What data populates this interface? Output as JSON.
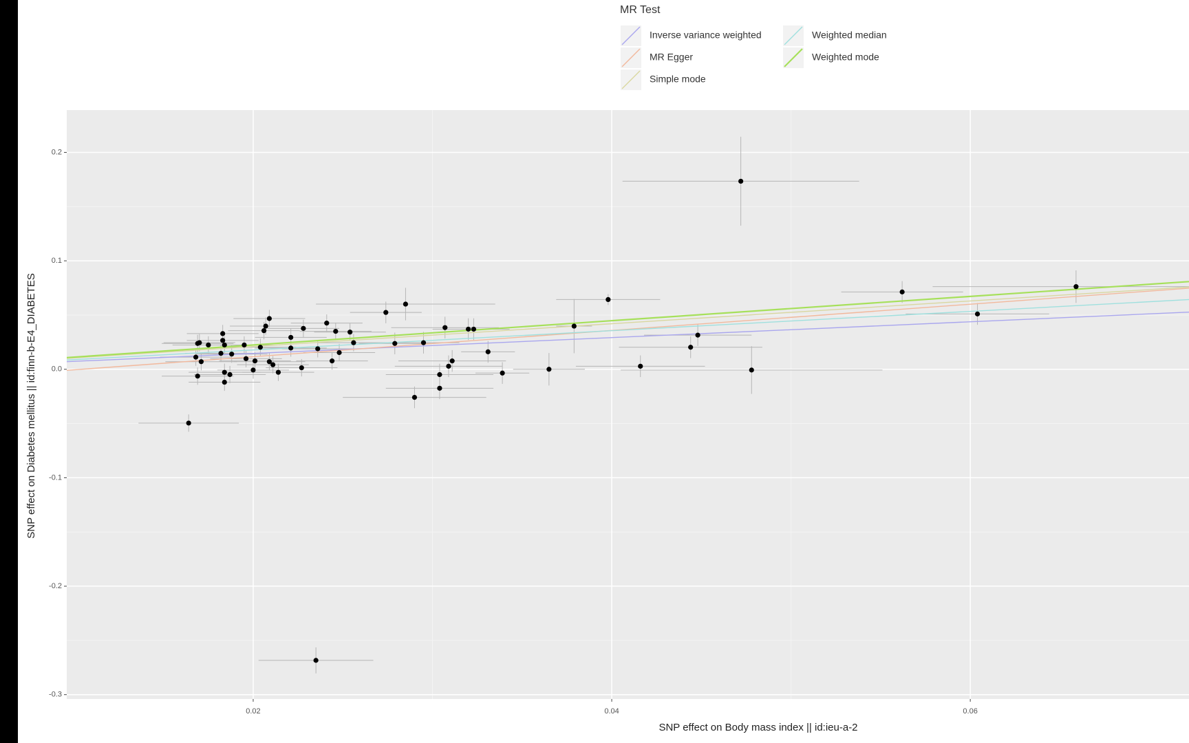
{
  "chart_data": {
    "type": "scatter",
    "x_label": "SNP effect on Body mass index || id:ieu-a-2",
    "y_label": "SNP effect on Diabetes mellitus || id:finn-b-E4_DIABETES",
    "legend_title": "MR Test",
    "point_color": "#000000",
    "xlim": [
      0.0096,
      0.0722
    ],
    "ylim": [
      -0.304,
      0.239
    ],
    "xticks": [
      0.02,
      0.04,
      0.06
    ],
    "yticks": [
      0.2,
      0.1,
      {
        "value": 0,
        "label": "0.0"
      },
      -0.1,
      -0.2,
      -0.3
    ],
    "grid": true,
    "x": [
      0.0472,
      0.0164,
      0.0235,
      0.0562,
      0.0659,
      0.0604,
      0.0398,
      0.0379,
      0.0478,
      0.0448,
      0.0444,
      0.0416,
      0.0365,
      0.0339,
      0.0331,
      0.0323,
      0.032,
      0.0311,
      0.0309,
      0.0304,
      0.0304,
      0.0307,
      0.029,
      0.0295,
      0.0285,
      0.0274,
      0.0279,
      0.0256,
      0.0254,
      0.0248,
      0.0246,
      0.0244,
      0.0241,
      0.0236,
      0.0228,
      0.0227,
      0.0221,
      0.0221,
      0.0214,
      0.0211,
      0.0209,
      0.0209,
      0.0207,
      0.0206,
      0.0204,
      0.0201,
      0.02,
      0.0196,
      0.0195,
      0.0188,
      0.0187,
      0.0184,
      0.0184,
      0.0183,
      0.0183,
      0.0182,
      0.0184,
      0.0175,
      0.0171,
      0.0169,
      0.0168,
      0.0169,
      0.017
    ],
    "y": [
      0.1734,
      -0.0496,
      -0.2684,
      0.0713,
      0.0762,
      0.051,
      0.0643,
      0.0398,
      -0.0007,
      0.0315,
      0.0203,
      0.0028,
      0,
      -0.0035,
      0.0161,
      0.037,
      0.037,
      0.0077,
      0.0028,
      -0.0049,
      -0.0175,
      0.0384,
      -0.0259,
      0.0245,
      0.0601,
      0.0524,
      0.0238,
      0.0245,
      0.0343,
      0.0154,
      0.035,
      0.0077,
      0.0426,
      0.0189,
      0.0377,
      0.0014,
      0.0294,
      0.0196,
      -0.0028,
      0.0042,
      0.007,
      0.0468,
      0.0398,
      0.0356,
      0.0203,
      0.0077,
      -0.0007,
      0.0098,
      0.0224,
      0.014,
      -0.0049,
      -0.0119,
      -0.0028,
      0.0329,
      0.0266,
      0.0147,
      0.0224,
      0.0224,
      0.007,
      0.0238,
      0.0112,
      -0.0063,
      0.0245
    ],
    "x_err": [
      0.0066,
      0.0028,
      0.0032,
      0.0034,
      0.008,
      0.004,
      0.0029,
      0.001,
      0.0073,
      0.003,
      0.004,
      0.0036,
      0.002,
      0.0015,
      0.0015,
      0.002,
      0.002,
      0.003,
      0.003,
      0.003,
      0.003,
      0.003,
      0.004,
      0.002,
      0.005,
      0.002,
      0.002,
      0.002,
      0.002,
      0.002,
      0.002,
      0.002,
      0.002,
      0.002,
      0.002,
      0.002,
      0.002,
      0.002,
      0.002,
      0.002,
      0.002,
      0.002,
      0.002,
      0.002,
      0.002,
      0.002,
      0.002,
      0.002,
      0.002,
      0.002,
      0.002,
      0.002,
      0.002,
      0.002,
      0.002,
      0.002,
      0.002,
      0.002,
      0.002,
      0.002,
      0.002,
      0.002,
      0.002
    ],
    "y_err": [
      0.041,
      0.008,
      0.012,
      0.01,
      0.015,
      0.01,
      0.005,
      0.025,
      0.022,
      0.01,
      0.01,
      0.01,
      0.015,
      0.01,
      0.01,
      0.01,
      0.01,
      0.01,
      0.01,
      0.01,
      0.01,
      0.01,
      0.01,
      0.01,
      0.015,
      0.01,
      0.01,
      0.008,
      0.008,
      0.008,
      0.008,
      0.008,
      0.008,
      0.008,
      0.008,
      0.008,
      0.008,
      0.008,
      0.008,
      0.008,
      0.008,
      0.008,
      0.008,
      0.008,
      0.008,
      0.008,
      0.008,
      0.008,
      0.008,
      0.008,
      0.008,
      0.008,
      0.008,
      0.008,
      0.008,
      0.008,
      0.008,
      0.008,
      0.008,
      0.008,
      0.008,
      0.008,
      0.008
    ],
    "lines": [
      {
        "name": "Inverse variance weighted",
        "color": "#a9a6ee",
        "slope": 0.73,
        "intercept": 0
      },
      {
        "name": "MR Egger",
        "color": "#f2b89c",
        "slope": 1.21,
        "intercept": -0.0126
      },
      {
        "name": "Simple mode",
        "color": "#d9d7a0",
        "slope": 1.05,
        "intercept": 0
      },
      {
        "name": "Weighted median",
        "color": "#9fe0de",
        "slope": 0.89,
        "intercept": 0
      },
      {
        "name": "Weighted mode",
        "color": "#a6e05a",
        "slope": 1.12,
        "intercept": 0
      }
    ]
  }
}
